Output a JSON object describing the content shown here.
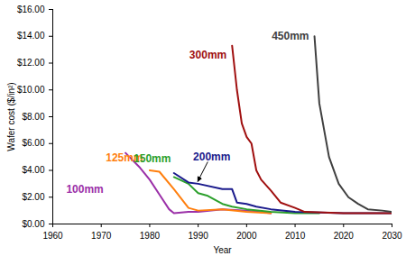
{
  "chart_data": {
    "type": "line",
    "x_label": "Year",
    "y_label": "Wafer cost ($/in²)",
    "xlim": [
      1960,
      2030
    ],
    "xticks": [
      1960,
      1970,
      1980,
      1990,
      2000,
      2010,
      2020,
      2030
    ],
    "ylim": [
      0,
      16
    ],
    "yticks": [
      {
        "value": 0,
        "label": "$0.00"
      },
      {
        "value": 2,
        "label": "$2.00"
      },
      {
        "value": 4,
        "label": "$4.00"
      },
      {
        "value": 6,
        "label": "$6.00"
      },
      {
        "value": 8,
        "label": "$8.00"
      },
      {
        "value": 10,
        "label": "$10.00"
      },
      {
        "value": 12,
        "label": "$12.00"
      },
      {
        "value": 14,
        "label": "$14.00"
      },
      {
        "value": 16,
        "label": "$16.00"
      }
    ],
    "grid": false,
    "series": [
      {
        "name": "100mm",
        "color": "#9b30a8",
        "x": [
          1975,
          1978,
          1980,
          1982,
          1984,
          1985,
          1988,
          1990,
          1995,
          2000,
          2005
        ],
        "values": [
          5.3,
          4.2,
          3.3,
          2.2,
          1.1,
          0.8,
          0.9,
          0.9,
          1.1,
          1.0,
          0.8
        ]
      },
      {
        "name": "125mm",
        "color": "#ff7f0e",
        "x": [
          1980,
          1982,
          1985,
          1988,
          1990,
          1995,
          2000,
          2005
        ],
        "values": [
          4.0,
          3.9,
          2.6,
          1.2,
          1.0,
          1.1,
          0.9,
          0.8
        ]
      },
      {
        "name": "150mm",
        "color": "#2ca02c",
        "x": [
          1985,
          1988,
          1990,
          1992,
          1995,
          1997,
          2000,
          2005,
          2010,
          2015
        ],
        "values": [
          3.5,
          3.0,
          2.3,
          2.1,
          1.5,
          1.3,
          1.1,
          0.9,
          0.8,
          0.8
        ]
      },
      {
        "name": "200mm",
        "color": "#1a1a8c",
        "x": [
          1985,
          1988,
          1990,
          1995,
          1997,
          1998,
          2000,
          2002,
          2005,
          2010,
          2020,
          2030
        ],
        "values": [
          3.8,
          3.1,
          3.0,
          2.6,
          2.6,
          1.6,
          1.5,
          1.3,
          1.1,
          0.9,
          0.8,
          0.8
        ]
      },
      {
        "name": "300mm",
        "color": "#a01010",
        "x": [
          1997,
          1998,
          1999,
          2000,
          2001,
          2002,
          2003,
          2005,
          2007,
          2010,
          2012,
          2020,
          2030
        ],
        "values": [
          13.3,
          10.0,
          7.5,
          6.5,
          6.0,
          4.0,
          3.3,
          2.5,
          1.6,
          1.2,
          0.9,
          0.8,
          0.8
        ]
      },
      {
        "name": "450mm",
        "color": "#404040",
        "x": [
          2014,
          2015,
          2017,
          2019,
          2021,
          2023,
          2025,
          2028,
          2030
        ],
        "values": [
          14.0,
          9.0,
          5.0,
          3.0,
          2.0,
          1.5,
          1.1,
          1.0,
          0.9
        ]
      }
    ]
  }
}
